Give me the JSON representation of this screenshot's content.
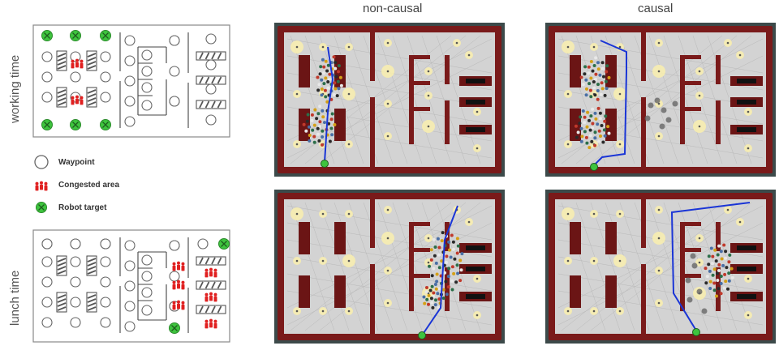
{
  "columns": {
    "non_causal": "non-causal",
    "causal": "causal"
  },
  "rows": {
    "working": "working time",
    "lunch": "lunch time"
  },
  "legend": {
    "waypoint": "Waypoint",
    "congested": "Congested area",
    "target": "Robot target"
  },
  "colors": {
    "wall": "#7a1a1a",
    "floor": "#d3d3d3",
    "path": "#1a35d6",
    "target": "#3ec43e",
    "waypoint_glow": "#f7edb0",
    "congested": "#e02020",
    "background_sim": "#3c4a4a"
  },
  "icons": [
    "waypoint-circle-icon",
    "congested-people-icon",
    "robot-target-icon",
    "obstacle-table-icon"
  ]
}
